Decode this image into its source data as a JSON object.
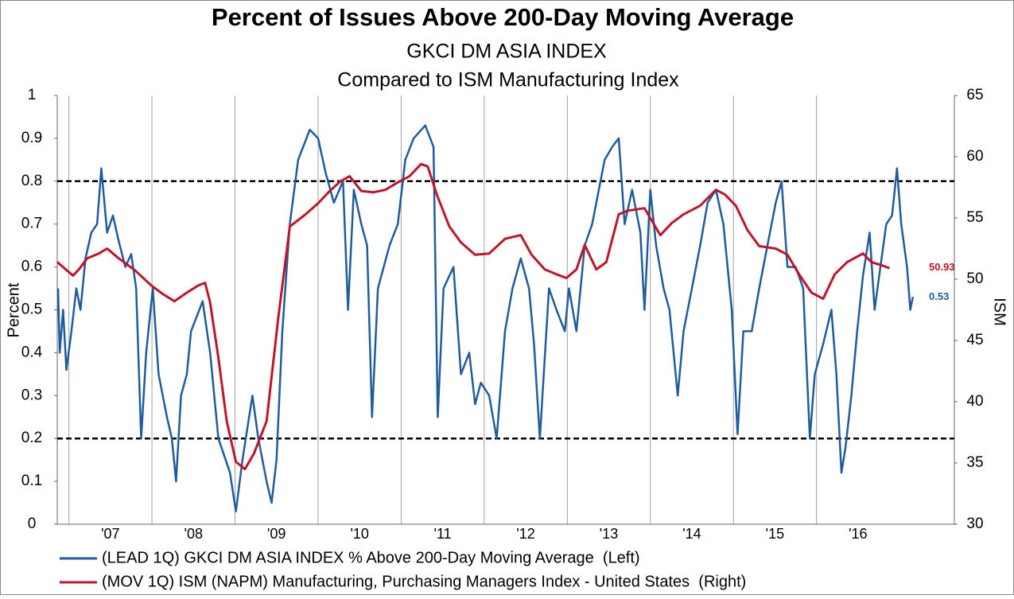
{
  "chart_data": {
    "type": "line",
    "title": "Percent of Issues Above 200-Day Moving Average",
    "subtitle": "GKCI DM ASIA INDEX",
    "subtitle2": "Compared to ISM Manufacturing Index",
    "ylabel": "Percent",
    "y2label": "ISM",
    "xlim": [
      2006.86,
      2017.66
    ],
    "xticks": [
      {
        "value": 2007,
        "label": "'07"
      },
      {
        "value": 2008,
        "label": "'08"
      },
      {
        "value": 2009,
        "label": "'09"
      },
      {
        "value": 2010,
        "label": "'10"
      },
      {
        "value": 2011,
        "label": "'11"
      },
      {
        "value": 2012,
        "label": "'12"
      },
      {
        "value": 2013,
        "label": "'13"
      },
      {
        "value": 2014,
        "label": "'14"
      },
      {
        "value": 2015,
        "label": "'15"
      },
      {
        "value": 2016,
        "label": "'16"
      }
    ],
    "ylim": [
      0,
      1
    ],
    "yticks": [
      0,
      0.1,
      0.2,
      0.3,
      0.4,
      0.5,
      0.6,
      0.7,
      0.8,
      0.9,
      1
    ],
    "y2lim": [
      30,
      65
    ],
    "y2ticks": [
      30,
      35,
      40,
      45,
      50,
      55,
      60,
      65
    ],
    "grid": "x",
    "reference_lines": [
      0.2,
      0.8
    ],
    "legend": "bottom",
    "series": [
      {
        "name": "(LEAD 1Q) GKCI DM ASIA INDEX % Above 200-Day Moving Average  (Left)",
        "color": "#1f5c9e",
        "axis": "y",
        "end_value": 0.53,
        "x": [
          2006.87,
          2006.89,
          2006.93,
          2006.97,
          2007.03,
          2007.09,
          2007.14,
          2007.2,
          2007.27,
          2007.34,
          2007.39,
          2007.46,
          2007.53,
          2007.6,
          2007.68,
          2007.75,
          2007.81,
          2007.87,
          2007.93,
          2008.01,
          2008.08,
          2008.18,
          2008.24,
          2008.29,
          2008.35,
          2008.42,
          2008.47,
          2008.61,
          2008.7,
          2008.8,
          2008.94,
          2009.01,
          2009.09,
          2009.21,
          2009.28,
          2009.38,
          2009.44,
          2009.5,
          2009.57,
          2009.66,
          2009.76,
          2009.9,
          2010.0,
          2010.09,
          2010.19,
          2010.3,
          2010.36,
          2010.43,
          2010.52,
          2010.59,
          2010.65,
          2010.72,
          2010.86,
          2010.96,
          2011.05,
          2011.15,
          2011.29,
          2011.39,
          2011.44,
          2011.51,
          2011.63,
          2011.72,
          2011.82,
          2011.89,
          2011.96,
          2012.06,
          2012.15,
          2012.25,
          2012.34,
          2012.44,
          2012.54,
          2012.6,
          2012.67,
          2012.78,
          2012.87,
          2012.97,
          2013.02,
          2013.11,
          2013.21,
          2013.3,
          2013.45,
          2013.54,
          2013.62,
          2013.69,
          2013.78,
          2013.88,
          2013.93,
          2014.0,
          2014.07,
          2014.16,
          2014.23,
          2014.33,
          2014.4,
          2014.5,
          2014.6,
          2014.69,
          2014.79,
          2014.88,
          2014.98,
          2015.05,
          2015.12,
          2015.22,
          2015.31,
          2015.41,
          2015.51,
          2015.58,
          2015.65,
          2015.75,
          2015.84,
          2015.92,
          2015.98,
          2016.08,
          2016.18,
          2016.24,
          2016.3,
          2016.35,
          2016.42,
          2016.49,
          2016.56,
          2016.64,
          2016.7,
          2016.77,
          2016.84,
          2016.91,
          2016.97,
          2017.02,
          2017.09,
          2017.13,
          2017.16
        ],
        "values": [
          0.55,
          0.4,
          0.5,
          0.36,
          0.45,
          0.55,
          0.5,
          0.62,
          0.68,
          0.7,
          0.83,
          0.68,
          0.72,
          0.66,
          0.6,
          0.63,
          0.55,
          0.2,
          0.4,
          0.55,
          0.35,
          0.25,
          0.2,
          0.1,
          0.3,
          0.35,
          0.45,
          0.52,
          0.4,
          0.2,
          0.12,
          0.03,
          0.15,
          0.3,
          0.2,
          0.1,
          0.05,
          0.15,
          0.45,
          0.7,
          0.85,
          0.92,
          0.9,
          0.82,
          0.75,
          0.8,
          0.5,
          0.78,
          0.7,
          0.65,
          0.25,
          0.55,
          0.65,
          0.7,
          0.85,
          0.9,
          0.93,
          0.88,
          0.25,
          0.55,
          0.6,
          0.35,
          0.4,
          0.28,
          0.33,
          0.3,
          0.2,
          0.45,
          0.55,
          0.62,
          0.55,
          0.42,
          0.2,
          0.55,
          0.5,
          0.45,
          0.55,
          0.45,
          0.65,
          0.7,
          0.85,
          0.88,
          0.9,
          0.7,
          0.78,
          0.68,
          0.5,
          0.78,
          0.65,
          0.55,
          0.5,
          0.3,
          0.45,
          0.55,
          0.65,
          0.75,
          0.78,
          0.7,
          0.5,
          0.21,
          0.45,
          0.45,
          0.55,
          0.65,
          0.75,
          0.8,
          0.6,
          0.6,
          0.55,
          0.2,
          0.35,
          0.42,
          0.5,
          0.35,
          0.12,
          0.18,
          0.3,
          0.45,
          0.58,
          0.68,
          0.5,
          0.6,
          0.7,
          0.72,
          0.83,
          0.7,
          0.6,
          0.5,
          0.53
        ]
      },
      {
        "name": "(MOV 1Q) ISM (NAPM) Manufacturing, Purchasing Managers Index - United States  (Right)",
        "color": "#c0142a",
        "axis": "y2",
        "end_value": 50.93,
        "x": [
          2006.86,
          2006.98,
          2007.05,
          2007.12,
          2007.22,
          2007.36,
          2007.46,
          2007.6,
          2007.8,
          2007.99,
          2008.13,
          2008.27,
          2008.42,
          2008.56,
          2008.64,
          2008.7,
          2008.8,
          2008.9,
          2009.01,
          2009.12,
          2009.23,
          2009.38,
          2009.52,
          2009.66,
          2009.85,
          2010.0,
          2010.14,
          2010.27,
          2010.38,
          2010.52,
          2010.67,
          2010.81,
          2010.96,
          2011.1,
          2011.24,
          2011.32,
          2011.43,
          2011.58,
          2011.72,
          2011.89,
          2012.06,
          2012.25,
          2012.44,
          2012.57,
          2012.73,
          2012.87,
          2012.99,
          2013.11,
          2013.21,
          2013.35,
          2013.47,
          2013.62,
          2013.73,
          2013.93,
          2014.12,
          2014.26,
          2014.4,
          2014.6,
          2014.79,
          2014.9,
          2015.03,
          2015.17,
          2015.31,
          2015.51,
          2015.65,
          2015.79,
          2015.94,
          2016.08,
          2016.22,
          2016.37,
          2016.56,
          2016.66,
          2016.8,
          2016.88
        ],
        "values": [
          51.4,
          50.7,
          50.3,
          50.8,
          51.7,
          52.1,
          52.5,
          51.7,
          50.7,
          49.5,
          48.8,
          48.2,
          48.9,
          49.5,
          49.7,
          48.1,
          43.6,
          38.4,
          35.1,
          34.5,
          35.8,
          38.4,
          46.8,
          54.3,
          55.3,
          56.2,
          57.2,
          58.0,
          58.4,
          57.2,
          57.1,
          57.3,
          57.9,
          58.4,
          59.4,
          59.2,
          56.9,
          54.3,
          53.0,
          52.0,
          52.1,
          53.3,
          53.6,
          52.0,
          50.8,
          50.4,
          50.1,
          50.8,
          52.8,
          50.8,
          51.4,
          55.3,
          55.6,
          55.8,
          53.6,
          54.6,
          55.3,
          56.0,
          57.3,
          56.9,
          56.0,
          54.0,
          52.7,
          52.5,
          52.0,
          50.4,
          48.9,
          48.4,
          50.4,
          51.4,
          52.1,
          51.4,
          51.1,
          50.9
        ]
      }
    ]
  }
}
